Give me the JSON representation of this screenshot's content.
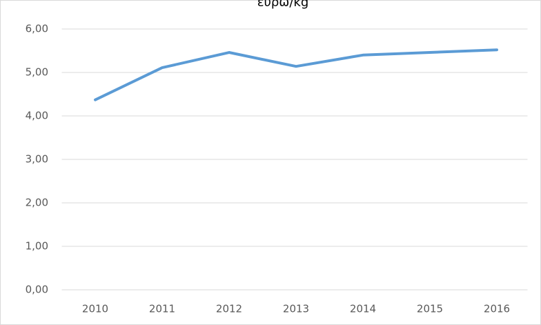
{
  "chart_data": {
    "type": "line",
    "title": "ευρώ/kg",
    "categories": [
      "2010",
      "2011",
      "2012",
      "2013",
      "2014",
      "2015",
      "2016"
    ],
    "series": [
      {
        "name": "ευρώ/kg",
        "color": "#5b9bd5",
        "values": [
          4.37,
          5.11,
          5.46,
          5.14,
          5.4,
          5.46,
          5.52
        ]
      }
    ],
    "ylim": [
      0,
      6
    ],
    "yticks": [
      {
        "value": 0,
        "label": "0,00"
      },
      {
        "value": 1,
        "label": "1,00"
      },
      {
        "value": 2,
        "label": "2,00"
      },
      {
        "value": 3,
        "label": "3,00"
      },
      {
        "value": 4,
        "label": "4,00"
      },
      {
        "value": 5,
        "label": "5,00"
      },
      {
        "value": 6,
        "label": "6,00"
      }
    ],
    "grid": true
  }
}
